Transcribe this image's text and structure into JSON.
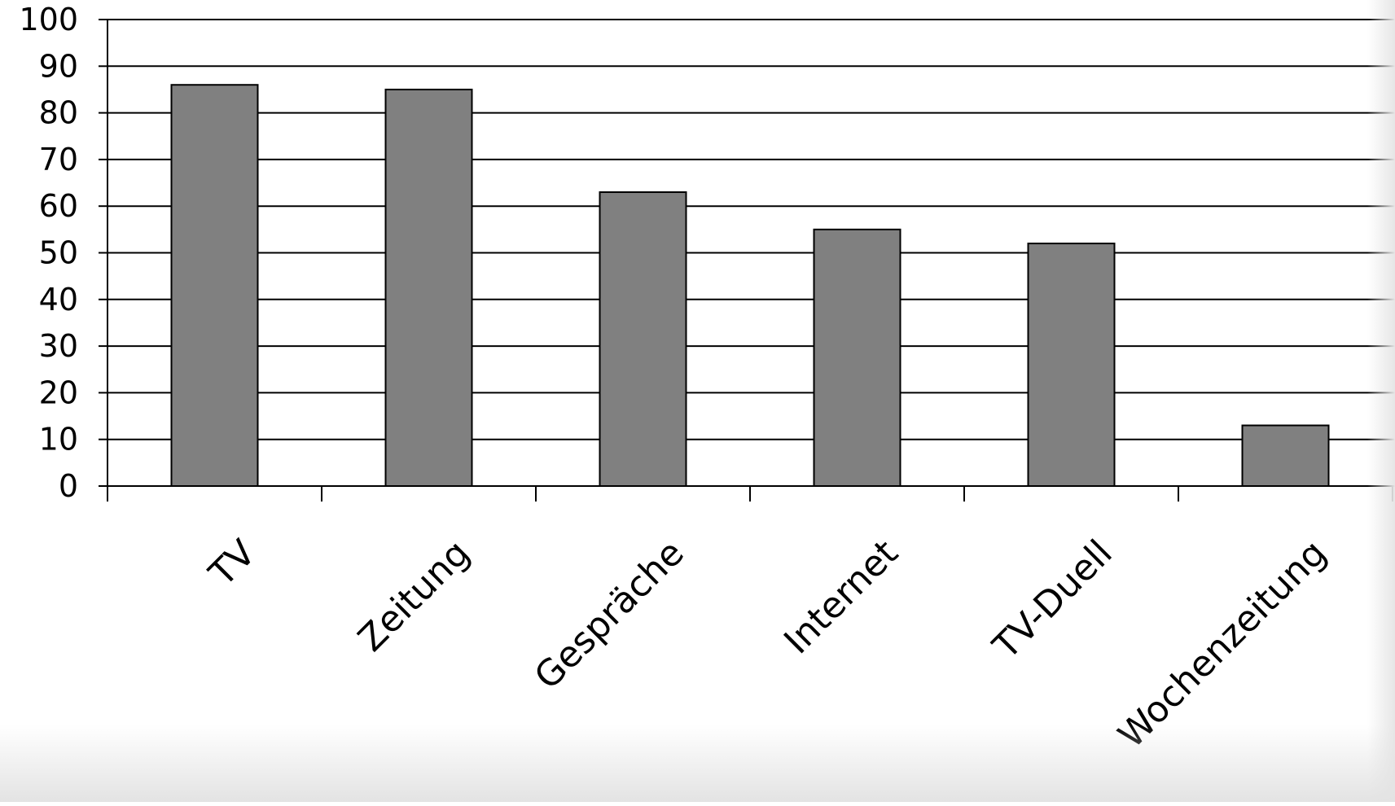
{
  "chart_data": {
    "type": "bar",
    "categories": [
      "TV",
      "Zeitung",
      "Gespräche",
      "Internet",
      "TV-Duell",
      "Wochenzeitung"
    ],
    "values": [
      86,
      85,
      63,
      55,
      52,
      13
    ],
    "title": "",
    "xlabel": "",
    "ylabel": "",
    "ylim": [
      0,
      100
    ],
    "yticks": [
      0,
      10,
      20,
      30,
      40,
      50,
      60,
      70,
      80,
      90,
      100
    ],
    "grid": true,
    "legend": "none",
    "bar_color": "#808080",
    "bar_edge_color": "#000000",
    "grid_color": "#000000"
  }
}
